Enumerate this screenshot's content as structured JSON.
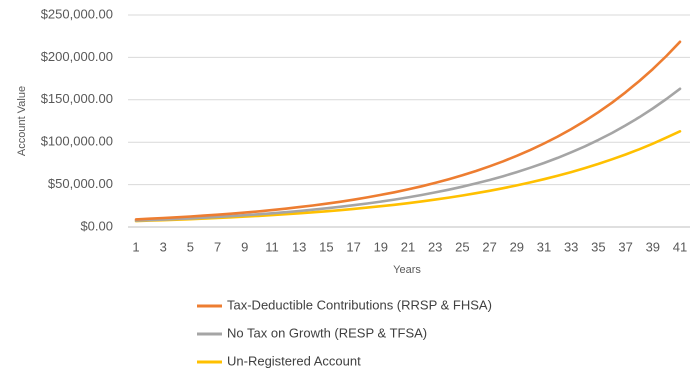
{
  "chart_data": {
    "type": "line",
    "x_label": "Years",
    "y_label": "Account Value",
    "categories": [
      "1",
      null,
      "3",
      null,
      "5",
      null,
      "7",
      null,
      "9",
      null,
      "11",
      null,
      "13",
      null,
      "15",
      null,
      "17",
      null,
      "19",
      null,
      "21",
      null,
      "23",
      null,
      "25",
      null,
      "27",
      null,
      "29",
      null,
      "31",
      null,
      "33",
      null,
      "35",
      null,
      "37",
      null,
      "39",
      null,
      "41"
    ],
    "series": [
      {
        "name": "Tax-Deductible Contributions (RRSP & FHSA)",
        "color": "#ed7d31",
        "values": [
          9000,
          9750,
          10560,
          11430,
          12380,
          13410,
          14520,
          15730,
          17030,
          18450,
          19980,
          21630,
          23430,
          25380,
          27480,
          29760,
          32230,
          34910,
          37810,
          40940,
          44340,
          48020,
          52010,
          56330,
          61000,
          66060,
          71550,
          77490,
          83920,
          90880,
          98420,
          106600,
          115400,
          125000,
          135400,
          146600,
          158800,
          172000,
          186200,
          201700,
          218400
        ]
      },
      {
        "name": "No Tax on Growth (RESP & TFSA)",
        "color": "#a5a5a5",
        "values": [
          7500,
          8100,
          8750,
          9450,
          10200,
          11020,
          11900,
          12850,
          13880,
          14990,
          16190,
          17490,
          18890,
          20400,
          22030,
          23790,
          25700,
          27750,
          29970,
          32370,
          34960,
          37760,
          40780,
          44040,
          47560,
          51370,
          55480,
          59920,
          64710,
          69890,
          75480,
          81520,
          88040,
          95080,
          102700,
          110900,
          119800,
          129400,
          139700,
          150900,
          163000
        ]
      },
      {
        "name": "Un-Registered Account",
        "color": "#ffc000",
        "values": [
          7000,
          7500,
          8040,
          8620,
          9240,
          9910,
          10620,
          11390,
          12210,
          13090,
          14030,
          15040,
          16120,
          17280,
          18530,
          19860,
          21290,
          22820,
          24470,
          26230,
          28120,
          30140,
          32310,
          34640,
          37130,
          39800,
          42670,
          45740,
          49030,
          52560,
          56350,
          60410,
          64760,
          69420,
          74420,
          79780,
          85520,
          91680,
          98280,
          105400,
          112900
        ]
      }
    ],
    "ylim": [
      0,
      250000
    ],
    "yticks": [
      {
        "value": 0,
        "label": "$0.00"
      },
      {
        "value": 50000,
        "label": "$50,000.00"
      },
      {
        "value": 100000,
        "label": "$100,000.00"
      },
      {
        "value": 150000,
        "label": "$150,000.00"
      },
      {
        "value": 200000,
        "label": "$200,000.00"
      },
      {
        "value": 250000,
        "label": "$250,000.00"
      }
    ],
    "grid": true,
    "legend": "bottom"
  }
}
